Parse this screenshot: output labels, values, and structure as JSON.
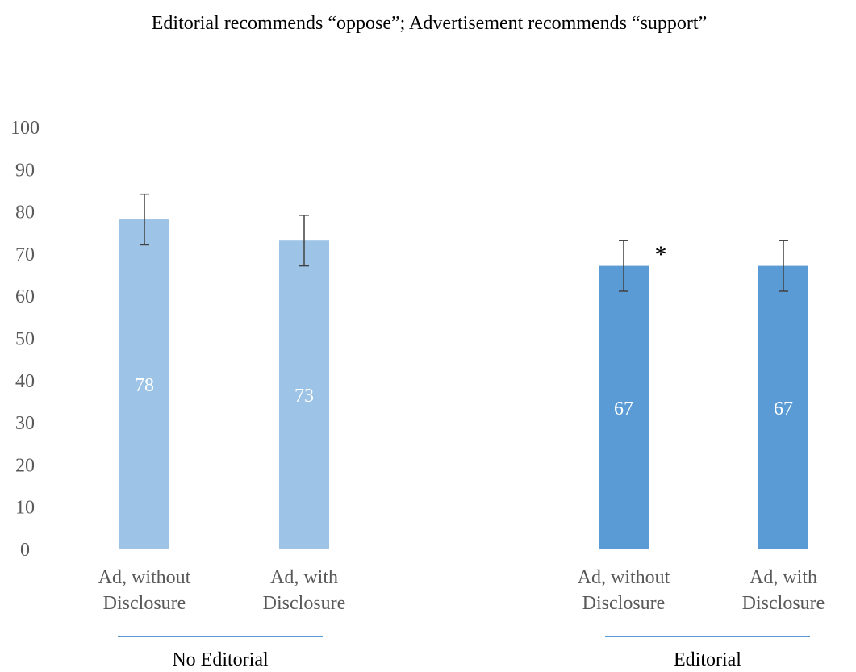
{
  "chart_data": {
    "type": "bar",
    "title": "Editorial recommends “oppose”; Advertisement recommends “support”",
    "xlabel": "",
    "ylabel": "",
    "ylim": [
      0,
      100
    ],
    "yticks": [
      0,
      10,
      20,
      30,
      40,
      50,
      60,
      70,
      80,
      90,
      100
    ],
    "grid": false,
    "legend": "none",
    "groups": [
      {
        "name": "No Editorial",
        "color": "#9dc3e6",
        "bars": [
          {
            "category_lines": [
              "Ad, without",
              "Disclosure"
            ],
            "value": 78,
            "error_low": 72,
            "error_high": 84,
            "label": "78",
            "marker": ""
          },
          {
            "category_lines": [
              "Ad, with",
              "Disclosure"
            ],
            "value": 73,
            "error_low": 67,
            "error_high": 79,
            "label": "73",
            "marker": ""
          }
        ]
      },
      {
        "name": "Editorial",
        "color": "#5b9bd5",
        "bars": [
          {
            "category_lines": [
              "Ad, without",
              "Disclosure"
            ],
            "value": 67,
            "error_low": 61,
            "error_high": 73,
            "label": "67",
            "marker": "*"
          },
          {
            "category_lines": [
              "Ad, with",
              "Disclosure"
            ],
            "value": 67,
            "error_low": 61,
            "error_high": 73,
            "label": "67",
            "marker": ""
          }
        ]
      }
    ],
    "colors": {
      "axis_text": "#595959",
      "label_text": "#ffffff",
      "title_text": "#000000",
      "error_bar": "#404040",
      "group_rule": "#5b9bd5",
      "axis_line": "#d9d9d9"
    }
  }
}
